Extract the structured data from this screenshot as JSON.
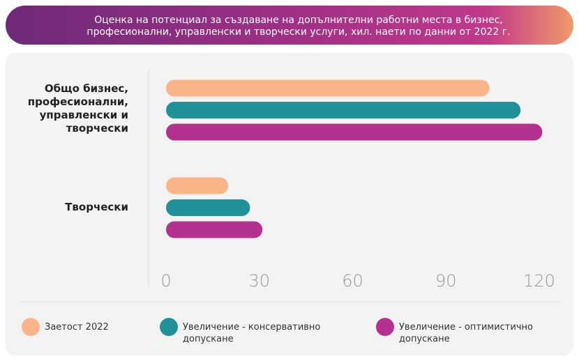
{
  "chart_data": {
    "type": "hbar",
    "title": "Оценка на потенциал за създаване на допълнителни работни места в бизнес, професионални, управленски и творчески услуги, хил. наети по данни от 2022 г.",
    "categories": [
      "Общо бизнес, професионални, управленски и творчески",
      "Творчески"
    ],
    "series": [
      {
        "name": "Заетост 2022",
        "color": "#f9b487",
        "values": [
          104,
          20
        ]
      },
      {
        "name": "Увеличение - консервативно допускане",
        "color": "#1f9199",
        "values": [
          114,
          27
        ]
      },
      {
        "name": "Увеличение - оптимистично допускане",
        "color": "#b5318f",
        "values": [
          121,
          31
        ]
      }
    ],
    "xlim": [
      0,
      120
    ],
    "xticks": [
      0,
      30,
      60,
      90,
      120
    ]
  }
}
